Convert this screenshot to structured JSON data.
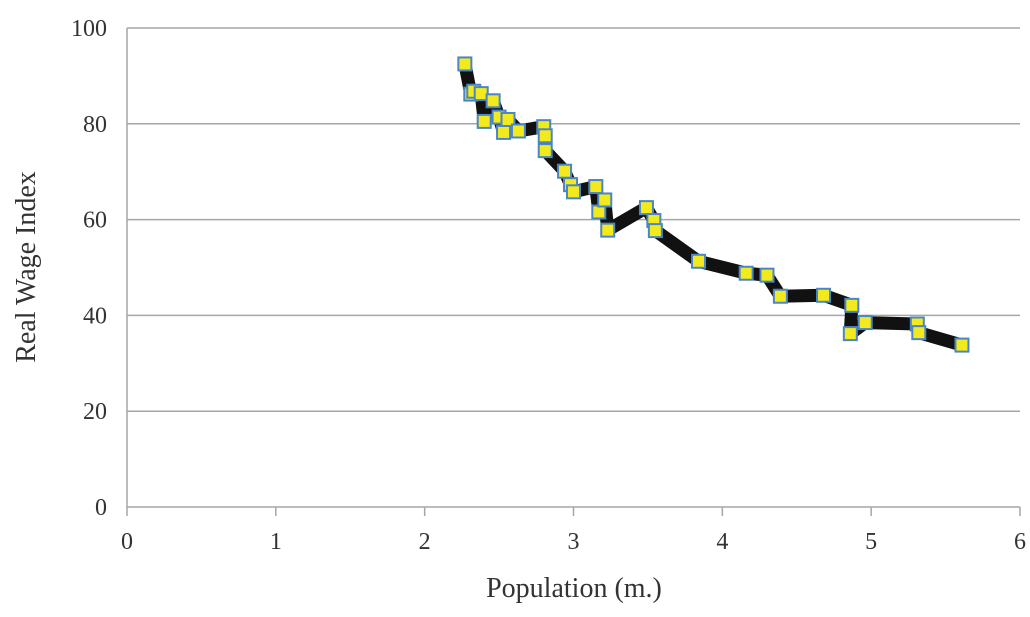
{
  "chart_data": {
    "type": "line",
    "title": "",
    "xlabel": "Population (m.)",
    "ylabel": "Real Wage Index",
    "xlim": [
      0,
      6
    ],
    "ylim": [
      0,
      100
    ],
    "x_ticks": [
      "0",
      "1",
      "2",
      "3",
      "4",
      "5",
      "6"
    ],
    "y_ticks": [
      "0",
      "20",
      "40",
      "60",
      "80",
      "100"
    ],
    "grid": "horizontal",
    "legend": "none",
    "line_color": "#111111",
    "marker": "square",
    "marker_fill": "#f2ea1c",
    "marker_edge": "#4a86c5",
    "series": [
      {
        "points": [
          [
            2.27,
            92.5
          ],
          [
            2.31,
            86.2
          ],
          [
            2.33,
            86.8
          ],
          [
            2.38,
            86.3
          ],
          [
            2.4,
            80.5
          ],
          [
            2.46,
            84.8
          ],
          [
            2.5,
            81.4
          ],
          [
            2.53,
            78.2
          ],
          [
            2.56,
            80.9
          ],
          [
            2.63,
            78.5
          ],
          [
            2.8,
            79.4
          ],
          [
            2.81,
            77.5
          ],
          [
            2.81,
            74.4
          ],
          [
            2.94,
            70.1
          ],
          [
            2.98,
            67.3
          ],
          [
            3.0,
            65.8
          ],
          [
            3.15,
            66.9
          ],
          [
            3.17,
            61.6
          ],
          [
            3.21,
            64.1
          ],
          [
            3.23,
            57.8
          ],
          [
            3.49,
            62.5
          ],
          [
            3.54,
            59.8
          ],
          [
            3.55,
            57.7
          ],
          [
            3.84,
            51.3
          ],
          [
            4.16,
            48.8
          ],
          [
            4.3,
            48.4
          ],
          [
            4.39,
            44.0
          ],
          [
            4.68,
            44.2
          ],
          [
            4.87,
            42.1
          ],
          [
            4.86,
            36.2
          ],
          [
            4.96,
            38.5
          ],
          [
            5.31,
            38.2
          ],
          [
            5.32,
            36.4
          ],
          [
            5.61,
            33.8
          ]
        ]
      }
    ]
  }
}
